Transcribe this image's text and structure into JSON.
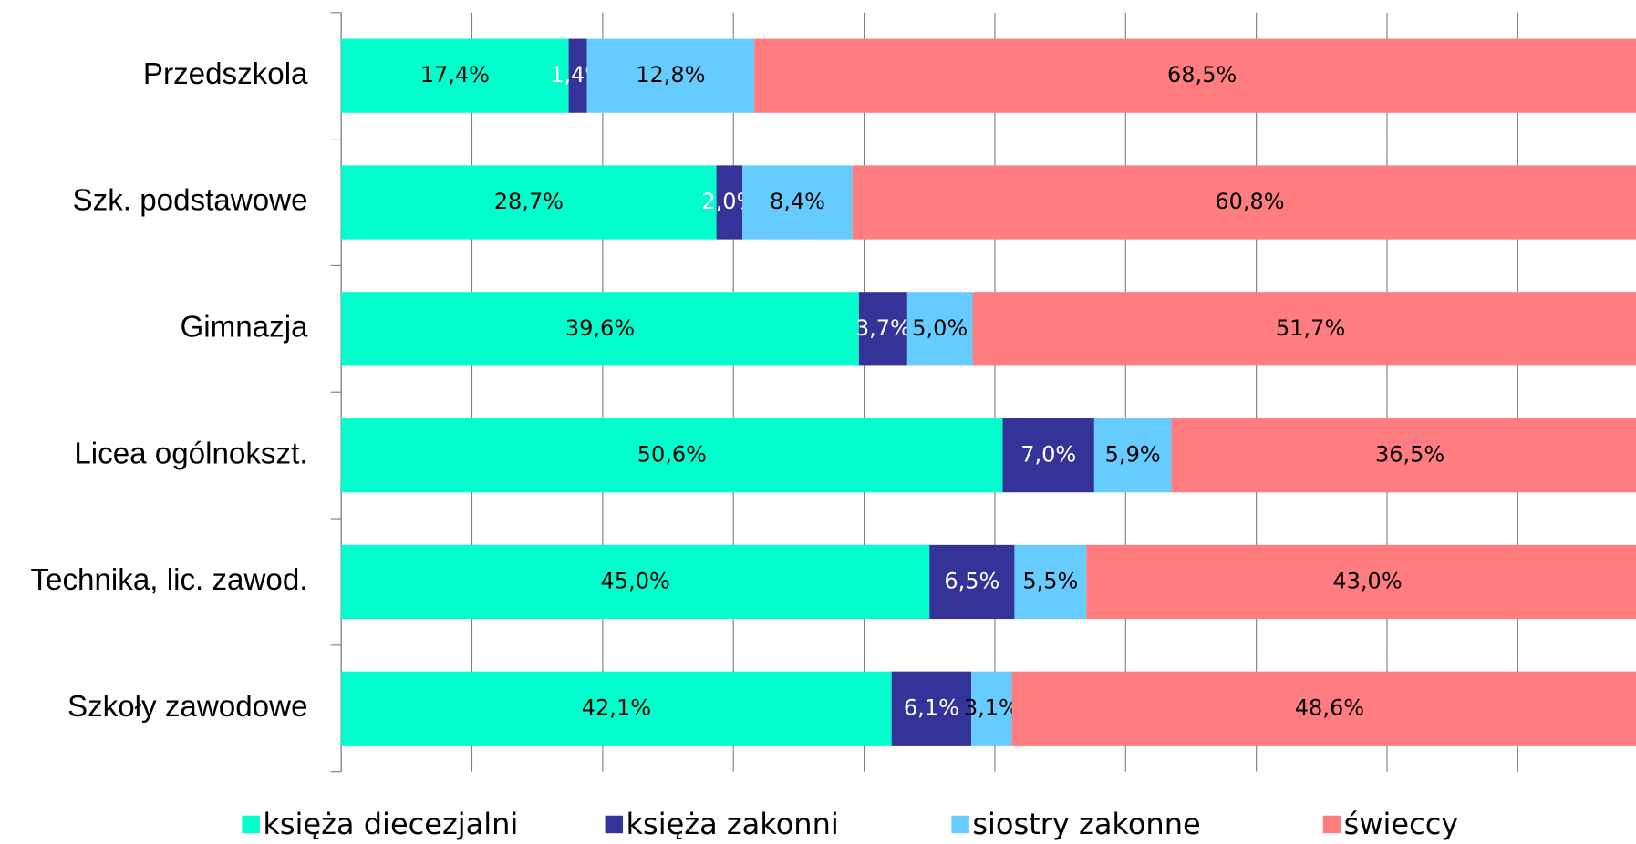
{
  "chart_data": {
    "type": "stacked-barh",
    "categories": [
      "Przedszkola",
      "Szk. podstawowe",
      "Gimnazja",
      "Licea ogólnokszt.",
      "Technika, lic. zawod.",
      "Szkoły zawodowe"
    ],
    "series": [
      {
        "name": "księża diecezjalni",
        "color": "#00ffcc",
        "label_color": "#000000",
        "values": [
          17.4,
          28.7,
          39.6,
          50.6,
          45.0,
          42.1
        ],
        "value_labels": [
          "17,4%",
          "28,7%",
          "39,6%",
          "50,6%",
          "45,0%",
          "42,1%"
        ]
      },
      {
        "name": "księża zakonni",
        "color": "#333399",
        "label_color": "#ffffff",
        "values": [
          1.4,
          2.0,
          3.7,
          7.0,
          6.5,
          6.1
        ],
        "value_labels": [
          "1,4%",
          "2,0%",
          "3,7%",
          "7,0%",
          "6,5%",
          "6,1%"
        ]
      },
      {
        "name": "siostry zakonne",
        "color": "#66ccff",
        "label_color": "#000000",
        "values": [
          12.8,
          8.4,
          5.0,
          5.9,
          5.5,
          3.1
        ],
        "value_labels": [
          "12,8%",
          "8,4%",
          "5,0%",
          "5,9%",
          "5,5%",
          "3,1%"
        ]
      },
      {
        "name": "świeccy",
        "color": "#ff7c80",
        "label_color": "#000000",
        "values": [
          68.5,
          60.8,
          51.7,
          36.5,
          43.0,
          48.6
        ],
        "value_labels": [
          "68,5%",
          "60,8%",
          "51,7%",
          "36,5%",
          "43,0%",
          "48,6%"
        ]
      }
    ],
    "xlim": [
      0,
      100
    ],
    "xticks": [
      0,
      10,
      20,
      30,
      40,
      50,
      60,
      70,
      80,
      90,
      100
    ],
    "grid": true,
    "legend": "bottom"
  }
}
